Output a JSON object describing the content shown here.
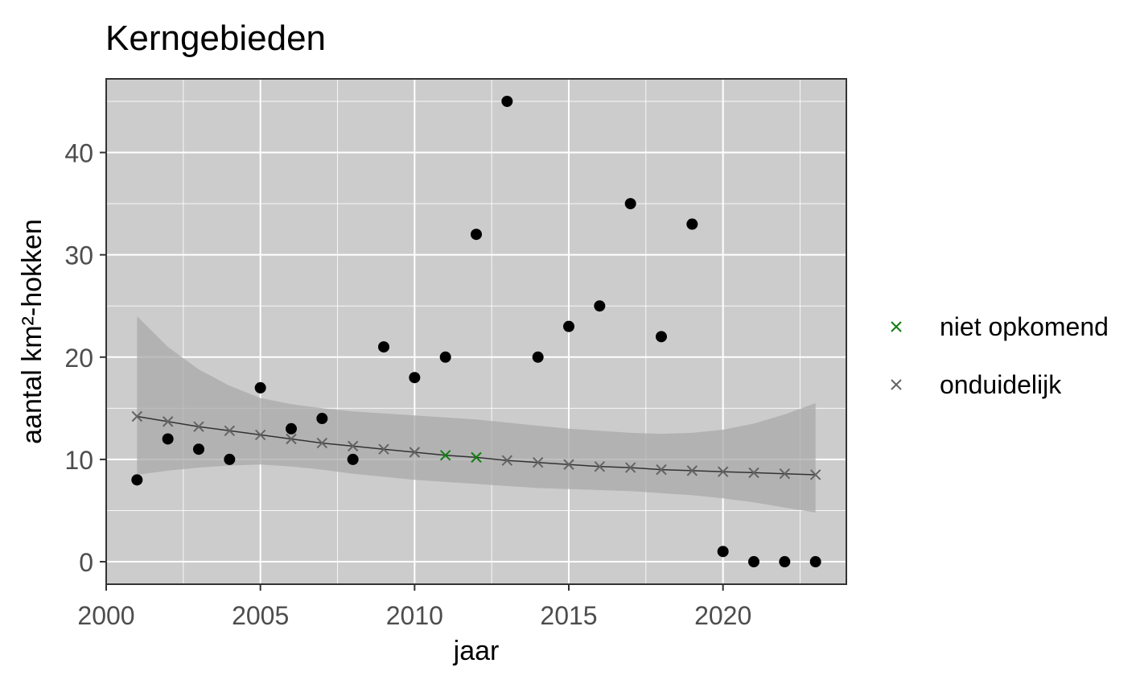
{
  "chart_data": {
    "type": "scatter",
    "title": "Kerngebieden",
    "xlabel": "jaar",
    "ylabel": "aantal km²-hokken",
    "xlim": [
      2000,
      2024
    ],
    "ylim": [
      -2.2,
      47.2
    ],
    "x_ticks": [
      2000,
      2005,
      2010,
      2015,
      2020
    ],
    "y_ticks": [
      0,
      10,
      20,
      30,
      40
    ],
    "grid": true,
    "legend_position": "right",
    "colors": {
      "panel": "#cccccc",
      "grid": "#ffffff",
      "points": "#000000",
      "ribbon": "#a9a9a9",
      "trend_line": "#333333",
      "niet_opkomend": "#137e13",
      "onduidelijk": "#646464"
    },
    "observed": {
      "x": [
        2001,
        2002,
        2003,
        2004,
        2005,
        2006,
        2007,
        2008,
        2009,
        2010,
        2011,
        2012,
        2013,
        2014,
        2015,
        2016,
        2017,
        2018,
        2019,
        2020,
        2021,
        2022,
        2023
      ],
      "y": [
        8,
        12,
        11,
        10,
        17,
        13,
        14,
        10,
        21,
        18,
        20,
        32,
        45,
        20,
        23,
        25,
        35,
        22,
        33,
        1,
        0,
        0,
        0
      ]
    },
    "trend": {
      "x": [
        2001,
        2002,
        2003,
        2004,
        2005,
        2006,
        2007,
        2008,
        2009,
        2010,
        2011,
        2012,
        2013,
        2014,
        2015,
        2016,
        2017,
        2018,
        2019,
        2020,
        2021,
        2022,
        2023
      ],
      "fit": [
        14.2,
        13.7,
        13.2,
        12.8,
        12.4,
        12.0,
        11.6,
        11.3,
        11.0,
        10.7,
        10.4,
        10.2,
        9.9,
        9.7,
        9.5,
        9.3,
        9.2,
        9.0,
        8.9,
        8.8,
        8.7,
        8.6,
        8.5
      ],
      "lower": [
        8.5,
        8.9,
        9.2,
        9.4,
        9.5,
        9.3,
        9.0,
        8.6,
        8.3,
        8.0,
        7.8,
        7.6,
        7.4,
        7.2,
        7.1,
        7.0,
        6.9,
        6.7,
        6.5,
        6.2,
        5.8,
        5.3,
        4.8
      ],
      "upper": [
        24.0,
        21.0,
        18.8,
        17.2,
        16.0,
        15.4,
        15.0,
        14.7,
        14.5,
        14.3,
        14.1,
        13.9,
        13.6,
        13.3,
        13.0,
        12.8,
        12.6,
        12.5,
        12.6,
        12.9,
        13.5,
        14.4,
        15.5
      ],
      "status": [
        "onduidelijk",
        "onduidelijk",
        "onduidelijk",
        "onduidelijk",
        "onduidelijk",
        "onduidelijk",
        "onduidelijk",
        "onduidelijk",
        "onduidelijk",
        "onduidelijk",
        "niet opkomend",
        "niet opkomend",
        "onduidelijk",
        "onduidelijk",
        "onduidelijk",
        "onduidelijk",
        "onduidelijk",
        "onduidelijk",
        "onduidelijk",
        "onduidelijk",
        "onduidelijk",
        "onduidelijk",
        "onduidelijk"
      ]
    },
    "legend": [
      {
        "label": "niet opkomend",
        "color": "#137e13",
        "marker": "cross"
      },
      {
        "label": "onduidelijk",
        "color": "#646464",
        "marker": "cross"
      }
    ]
  }
}
